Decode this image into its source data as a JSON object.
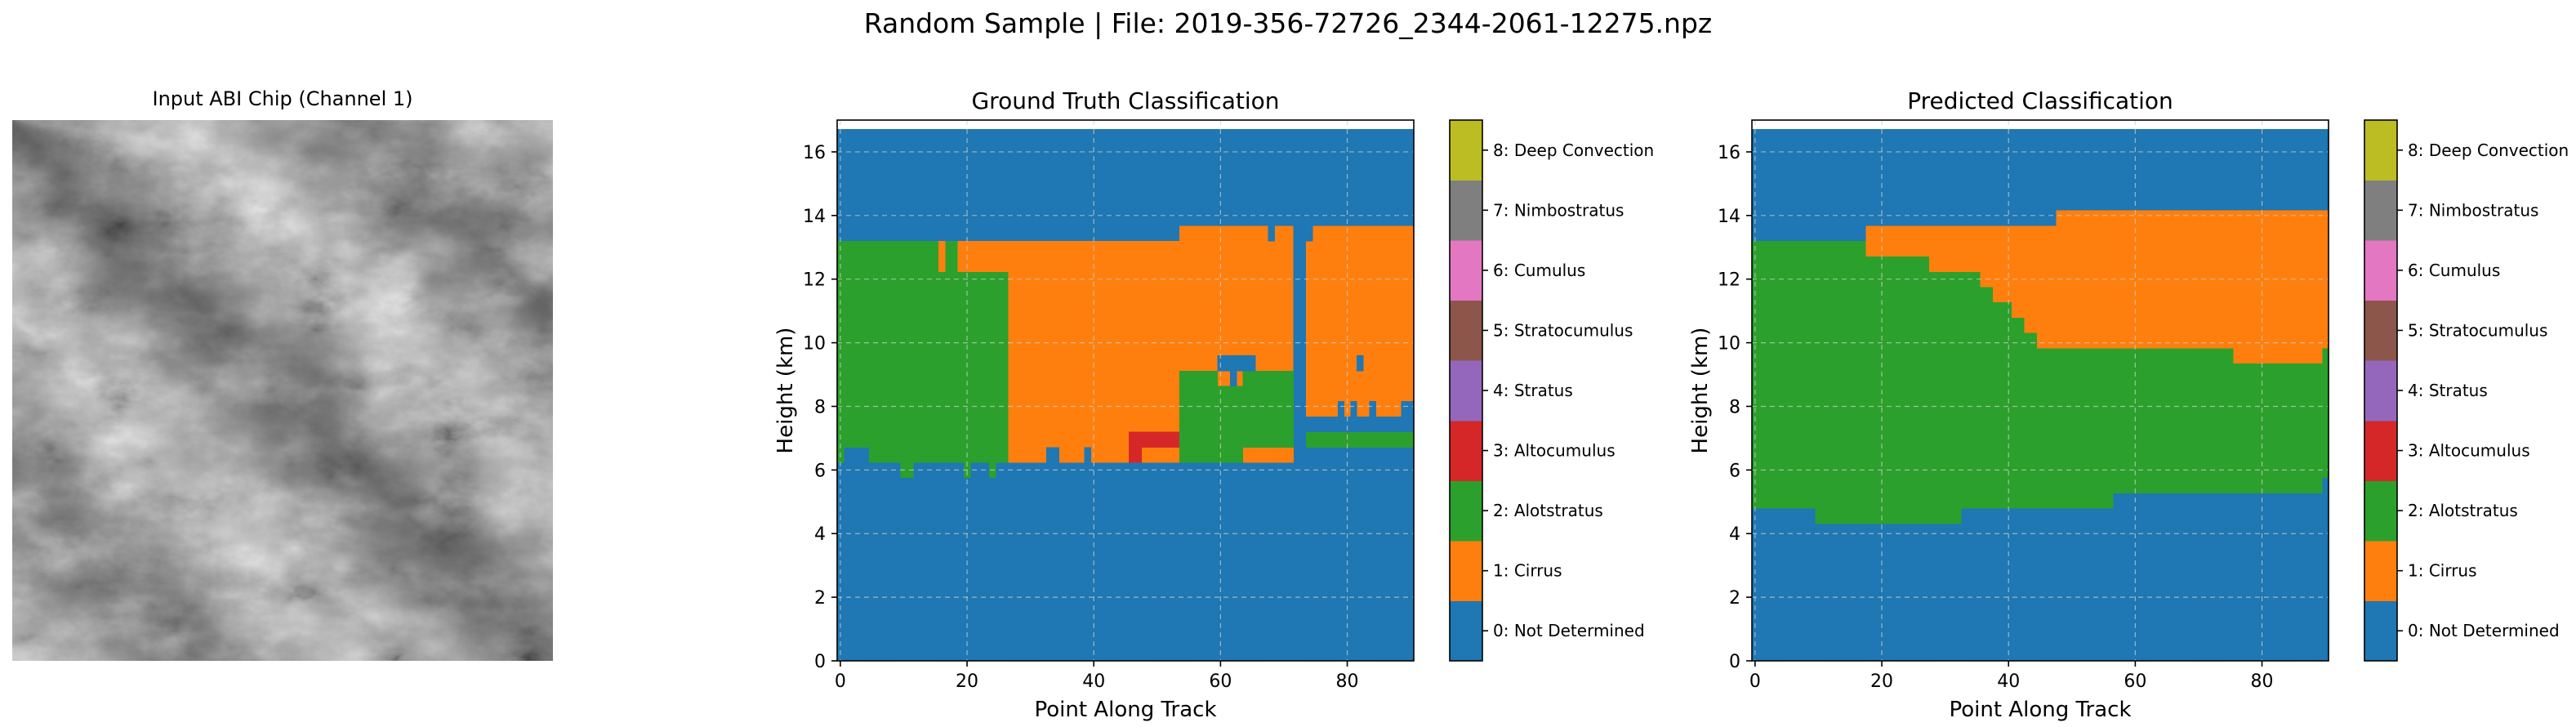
{
  "suptitle": "Random Sample | File: 2019-356-72726_2344-2061-12275.npz",
  "input_panel": {
    "title": "Input ABI Chip (Channel 1)"
  },
  "colors": [
    "#1f77b4",
    "#ff7f0e",
    "#2ca02c",
    "#d62728",
    "#9467bd",
    "#8c564b",
    "#e377c2",
    "#7f7f7f",
    "#bcbd22",
    "#17becf"
  ],
  "colorbar": {
    "labels": [
      "0: Not Determined",
      "1: Cirrus",
      "2: Alotstratus",
      "3: Altocumulus",
      "4: Stratus",
      "5: Stratocumulus",
      "6: Cumulus",
      "7: Nimbostratus",
      "8: Deep Convection"
    ]
  },
  "chart_data": [
    {
      "type": "heatmap",
      "title": "Ground Truth Classification",
      "xlabel": "Point Along Track",
      "ylabel": "Height (km)",
      "xlim": [
        -0.5,
        90.5
      ],
      "ylim": [
        0,
        17
      ],
      "x_ticks": [
        0,
        20,
        40,
        60,
        80
      ],
      "y_ticks": [
        0,
        2,
        4,
        6,
        8,
        10,
        12,
        14,
        16
      ],
      "data_top_km": 16.72,
      "grid": true,
      "regions": [
        {
          "class": 0,
          "x": [
            -0.5,
            90.5
          ],
          "y": [
            0,
            16.72
          ]
        },
        {
          "class": 2,
          "x": [
            0.5,
            4.5
          ],
          "y": [
            6.72,
            13.2
          ]
        },
        {
          "class": 2,
          "x": [
            -0.5,
            0.5
          ],
          "y": [
            6.24,
            13.2
          ]
        },
        {
          "class": 2,
          "x": [
            4.5,
            26.5
          ],
          "y": [
            6.24,
            13.2
          ]
        },
        {
          "class": 1,
          "x": [
            15.5,
            16.5
          ],
          "y": [
            12.24,
            13.2
          ]
        },
        {
          "class": 1,
          "x": [
            18.5,
            20.5
          ],
          "y": [
            12.24,
            13.2
          ]
        },
        {
          "class": 1,
          "x": [
            19.5,
            26.5
          ],
          "y": [
            12.24,
            13.2
          ]
        },
        {
          "class": 2,
          "x": [
            9.5,
            11.5
          ],
          "y": [
            5.76,
            6.24
          ]
        },
        {
          "class": 2,
          "x": [
            19.5,
            20.5
          ],
          "y": [
            5.76,
            6.24
          ]
        },
        {
          "class": 2,
          "x": [
            23.5,
            24.5
          ],
          "y": [
            5.76,
            6.24
          ]
        },
        {
          "class": 1,
          "x": [
            26.5,
            53.5
          ],
          "y": [
            6.24,
            13.2
          ]
        },
        {
          "class": 1,
          "x": [
            53.5,
            71.5
          ],
          "y": [
            6.24,
            13.68
          ]
        },
        {
          "class": 1,
          "x": [
            73.5,
            90.5
          ],
          "y": [
            7.68,
            13.68
          ]
        },
        {
          "class": 0,
          "x": [
            67.5,
            68.5
          ],
          "y": [
            13.2,
            13.68
          ]
        },
        {
          "class": 0,
          "x": [
            71.5,
            72.5
          ],
          "y": [
            7.2,
            13.68
          ]
        },
        {
          "class": 0,
          "x": [
            73.5,
            74.5
          ],
          "y": [
            13.2,
            13.68
          ]
        },
        {
          "class": 0,
          "x": [
            32.5,
            34.5
          ],
          "y": [
            6.24,
            6.72
          ]
        },
        {
          "class": 0,
          "x": [
            38.5,
            39.5
          ],
          "y": [
            6.24,
            6.72
          ]
        },
        {
          "class": 3,
          "x": [
            45.5,
            53.5
          ],
          "y": [
            6.72,
            7.2
          ]
        },
        {
          "class": 3,
          "x": [
            45.5,
            47.5
          ],
          "y": [
            6.24,
            6.72
          ]
        },
        {
          "class": 3,
          "x": [
            47.5,
            53.5
          ],
          "y": [
            6.72,
            7.2
          ]
        },
        {
          "class": 2,
          "x": [
            53.5,
            59.5
          ],
          "y": [
            6.24,
            9.12
          ]
        },
        {
          "class": 2,
          "x": [
            59.5,
            63.5
          ],
          "y": [
            6.24,
            8.64
          ]
        },
        {
          "class": 2,
          "x": [
            63.5,
            71.5
          ],
          "y": [
            6.72,
            9.12
          ]
        },
        {
          "class": 2,
          "x": [
            73.5,
            80.5
          ],
          "y": [
            6.72,
            7.68
          ]
        },
        {
          "class": 2,
          "x": [
            80.5,
            84.5
          ],
          "y": [
            6.72,
            7.2
          ]
        },
        {
          "class": 2,
          "x": [
            84.5,
            90.5
          ],
          "y": [
            6.72,
            7.68
          ]
        },
        {
          "class": 0,
          "x": [
            73.5,
            90.5
          ],
          "y": [
            7.2,
            7.68
          ]
        },
        {
          "class": 0,
          "x": [
            78.5,
            79.5
          ],
          "y": [
            7.68,
            8.16
          ]
        },
        {
          "class": 0,
          "x": [
            80.5,
            81.5
          ],
          "y": [
            7.68,
            8.16
          ]
        },
        {
          "class": 0,
          "x": [
            83.5,
            84.5
          ],
          "y": [
            7.68,
            8.16
          ]
        },
        {
          "class": 0,
          "x": [
            88.5,
            90.5
          ],
          "y": [
            7.68,
            8.16
          ]
        },
        {
          "class": 0,
          "x": [
            59.5,
            61.5
          ],
          "y": [
            9.12,
            9.6
          ]
        },
        {
          "class": 0,
          "x": [
            60.5,
            65.5
          ],
          "y": [
            9.12,
            9.6
          ]
        },
        {
          "class": 0,
          "x": [
            61.5,
            62.5
          ],
          "y": [
            8.64,
            9.6
          ]
        },
        {
          "class": 0,
          "x": [
            81.5,
            82.5
          ],
          "y": [
            9.12,
            9.6
          ]
        }
      ]
    },
    {
      "type": "heatmap",
      "title": "Predicted Classification",
      "xlabel": "Point Along Track",
      "ylabel": "Height (km)",
      "xlim": [
        -0.5,
        90.5
      ],
      "ylim": [
        0,
        17
      ],
      "x_ticks": [
        0,
        20,
        40,
        60,
        80
      ],
      "y_ticks": [
        0,
        2,
        4,
        6,
        8,
        10,
        12,
        14,
        16
      ],
      "data_top_km": 16.72,
      "grid": true,
      "regions": [
        {
          "class": 0,
          "x": [
            -0.5,
            90.5
          ],
          "y": [
            0,
            16.72
          ]
        },
        {
          "class": 2,
          "x": [
            -0.5,
            9.5
          ],
          "y": [
            4.8,
            13.2
          ]
        },
        {
          "class": 2,
          "x": [
            9.5,
            32.5
          ],
          "y": [
            4.32,
            13.2
          ]
        },
        {
          "class": 2,
          "x": [
            32.5,
            56.5
          ],
          "y": [
            4.8,
            13.2
          ]
        },
        {
          "class": 2,
          "x": [
            56.5,
            89.5
          ],
          "y": [
            5.28,
            13.2
          ]
        },
        {
          "class": 2,
          "x": [
            89.5,
            90.5
          ],
          "y": [
            5.76,
            13.2
          ]
        },
        {
          "class": 1,
          "x": [
            17.5,
            47.5
          ],
          "y": [
            12.72,
            13.68
          ]
        },
        {
          "class": 1,
          "x": [
            47.5,
            90.5
          ],
          "y": [
            12.72,
            14.16
          ]
        },
        {
          "class": 1,
          "x": [
            18.5,
            90.5
          ],
          "y": [
            12.72,
            13.2
          ]
        },
        {
          "class": 1,
          "x": [
            27.5,
            90.5
          ],
          "y": [
            12.24,
            12.72
          ]
        },
        {
          "class": 1,
          "x": [
            35.5,
            90.5
          ],
          "y": [
            11.76,
            12.24
          ]
        },
        {
          "class": 1,
          "x": [
            37.5,
            90.5
          ],
          "y": [
            11.28,
            11.76
          ]
        },
        {
          "class": 1,
          "x": [
            40.5,
            90.5
          ],
          "y": [
            10.8,
            11.28
          ]
        },
        {
          "class": 1,
          "x": [
            42.5,
            90.5
          ],
          "y": [
            10.32,
            10.8
          ]
        },
        {
          "class": 1,
          "x": [
            44.5,
            90.5
          ],
          "y": [
            9.84,
            10.32
          ]
        },
        {
          "class": 1,
          "x": [
            75.5,
            89.5
          ],
          "y": [
            9.6,
            9.84
          ]
        },
        {
          "class": 1,
          "x": [
            51.5,
            75.5
          ],
          "y": [
            9.84,
            10.32
          ]
        },
        {
          "class": 1,
          "x": [
            75.5,
            89.5
          ],
          "y": [
            9.36,
            9.84
          ]
        },
        {
          "class": 1,
          "x": [
            89.5,
            90.5
          ],
          "y": [
            9.84,
            10.32
          ]
        }
      ]
    }
  ]
}
